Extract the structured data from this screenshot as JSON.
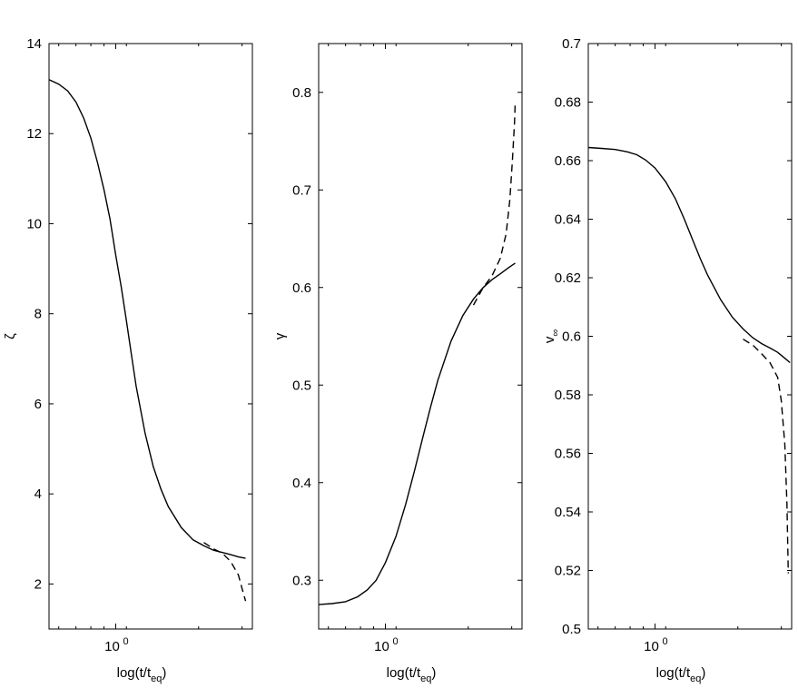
{
  "chart_data": [
    {
      "type": "line",
      "xlabel": "log(t/t",
      "xlabel_sub": "eq",
      "xlabel_close": ")",
      "ylabel": "ζ",
      "x_scale": "log",
      "xlim": [
        0.55,
        3.4
      ],
      "ylim": [
        1,
        14
      ],
      "x_ticks": [
        {
          "value": 1,
          "label": "10",
          "exp": "0"
        }
      ],
      "y_ticks": [
        {
          "value": 2,
          "label": "2"
        },
        {
          "value": 4,
          "label": "4"
        },
        {
          "value": 6,
          "label": "6"
        },
        {
          "value": 8,
          "label": "8"
        },
        {
          "value": 10,
          "label": "10"
        },
        {
          "value": 12,
          "label": "12"
        },
        {
          "value": 14,
          "label": "14"
        }
      ],
      "grid": false,
      "series": [
        {
          "style": "solid",
          "x": [
            0.55,
            0.6,
            0.65,
            0.7,
            0.75,
            0.8,
            0.85,
            0.9,
            0.95,
            1.0,
            1.05,
            1.1,
            1.15,
            1.2,
            1.3,
            1.4,
            1.5,
            1.6,
            1.8,
            2.0,
            2.2,
            2.4,
            2.6,
            2.8,
            3.0,
            3.2
          ],
          "y": [
            13.2,
            13.1,
            12.95,
            12.7,
            12.35,
            11.9,
            11.35,
            10.75,
            10.1,
            9.3,
            8.6,
            7.85,
            7.1,
            6.4,
            5.35,
            4.6,
            4.1,
            3.72,
            3.25,
            2.98,
            2.85,
            2.75,
            2.7,
            2.65,
            2.6,
            2.57
          ]
        },
        {
          "style": "dashed",
          "x": [
            2.2,
            2.4,
            2.6,
            2.8,
            3.0,
            3.1,
            3.2
          ],
          "y": [
            2.92,
            2.78,
            2.68,
            2.5,
            2.2,
            1.9,
            1.62
          ]
        }
      ]
    },
    {
      "type": "line",
      "xlabel": "log(t/t",
      "xlabel_sub": "eq",
      "xlabel_close": ")",
      "ylabel": "γ",
      "x_scale": "log",
      "xlim": [
        0.55,
        3.4
      ],
      "ylim": [
        0.25,
        0.85
      ],
      "x_ticks": [
        {
          "value": 1,
          "label": "10",
          "exp": "0"
        }
      ],
      "y_ticks": [
        {
          "value": 0.3,
          "label": "0.3"
        },
        {
          "value": 0.4,
          "label": "0.4"
        },
        {
          "value": 0.5,
          "label": "0.5"
        },
        {
          "value": 0.6,
          "label": "0.6"
        },
        {
          "value": 0.7,
          "label": "0.7"
        },
        {
          "value": 0.8,
          "label": "0.8"
        }
      ],
      "grid": false,
      "series": [
        {
          "style": "solid",
          "x": [
            0.55,
            0.62,
            0.7,
            0.78,
            0.85,
            0.92,
            1.0,
            1.1,
            1.2,
            1.3,
            1.4,
            1.5,
            1.6,
            1.8,
            2.0,
            2.2,
            2.4,
            2.6,
            2.8,
            3.0,
            3.2
          ],
          "y": [
            0.275,
            0.276,
            0.278,
            0.283,
            0.29,
            0.3,
            0.318,
            0.345,
            0.378,
            0.413,
            0.447,
            0.478,
            0.505,
            0.545,
            0.571,
            0.588,
            0.6,
            0.608,
            0.614,
            0.62,
            0.625
          ]
        },
        {
          "style": "dashed",
          "x": [
            2.2,
            2.4,
            2.6,
            2.8,
            2.95,
            3.05,
            3.12,
            3.18,
            3.2
          ],
          "y": [
            0.582,
            0.6,
            0.612,
            0.63,
            0.655,
            0.69,
            0.73,
            0.77,
            0.79
          ]
        }
      ]
    },
    {
      "type": "line",
      "xlabel": "log(t/t",
      "xlabel_sub": "eq",
      "xlabel_close": ")",
      "ylabel": "v",
      "ylabel_sub": "∞",
      "x_scale": "log",
      "xlim": [
        0.55,
        3.4
      ],
      "ylim": [
        0.5,
        0.7
      ],
      "x_ticks": [
        {
          "value": 1,
          "label": "10",
          "exp": "0"
        }
      ],
      "y_ticks": [
        {
          "value": 0.5,
          "label": "0.5"
        },
        {
          "value": 0.52,
          "label": "0.52"
        },
        {
          "value": 0.54,
          "label": "0.54"
        },
        {
          "value": 0.56,
          "label": "0.56"
        },
        {
          "value": 0.58,
          "label": "0.58"
        },
        {
          "value": 0.6,
          "label": "0.6"
        },
        {
          "value": 0.62,
          "label": "0.62"
        },
        {
          "value": 0.64,
          "label": "0.64"
        },
        {
          "value": 0.66,
          "label": "0.66"
        },
        {
          "value": 0.68,
          "label": "0.68"
        },
        {
          "value": 0.7,
          "label": "0.7"
        }
      ],
      "grid": false,
      "series": [
        {
          "style": "solid",
          "x": [
            0.55,
            0.62,
            0.7,
            0.78,
            0.85,
            0.92,
            1.0,
            1.1,
            1.2,
            1.3,
            1.4,
            1.5,
            1.6,
            1.8,
            2.0,
            2.2,
            2.4,
            2.6,
            2.8,
            3.0,
            3.2,
            3.35
          ],
          "y": [
            0.6645,
            0.6642,
            0.6638,
            0.663,
            0.662,
            0.6602,
            0.6575,
            0.6528,
            0.647,
            0.64,
            0.633,
            0.6265,
            0.621,
            0.6125,
            0.6065,
            0.6025,
            0.5995,
            0.5975,
            0.596,
            0.5945,
            0.5925,
            0.591
          ]
        },
        {
          "style": "dashed",
          "x": [
            2.2,
            2.4,
            2.6,
            2.8,
            3.0,
            3.1,
            3.2,
            3.26,
            3.3
          ],
          "y": [
            0.599,
            0.597,
            0.594,
            0.591,
            0.586,
            0.578,
            0.563,
            0.543,
            0.519
          ]
        }
      ]
    }
  ]
}
